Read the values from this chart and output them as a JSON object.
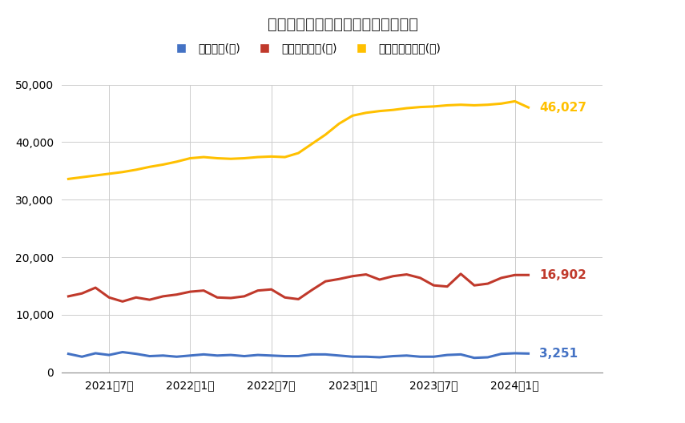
{
  "title": "首都圏　中古マンション件数の推移",
  "legend_labels": [
    "成約件数(件)",
    "新規登録件数(件)",
    "販売中の物件数(件)"
  ],
  "colors": {
    "blue": "#4472C4",
    "red": "#C0392B",
    "yellow": "#FFC000"
  },
  "x_tick_labels": [
    "2021年7月",
    "2022年1月",
    "2022年7月",
    "2023年1月",
    "2023年7月",
    "2024年1月"
  ],
  "ylim": [
    0,
    50000
  ],
  "yticks": [
    0,
    10000,
    20000,
    30000,
    40000,
    50000
  ],
  "end_labels": {
    "blue": "3,251",
    "red": "16,902",
    "yellow": "46,027"
  },
  "blue": [
    3200,
    2700,
    3300,
    3000,
    3500,
    3200,
    2800,
    2900,
    2700,
    2900,
    3100,
    2900,
    3000,
    2800,
    3000,
    2900,
    2800,
    2800,
    3100,
    3100,
    2900,
    2700,
    2700,
    2600,
    2800,
    2900,
    2700,
    2700,
    3000,
    3100,
    2500,
    2600,
    3200,
    3300,
    3251
  ],
  "red": [
    13200,
    13700,
    14700,
    13000,
    12300,
    13000,
    12600,
    13200,
    13500,
    14000,
    14200,
    13000,
    12900,
    13200,
    14200,
    14400,
    13000,
    12700,
    14300,
    15800,
    16200,
    16700,
    17000,
    16100,
    16700,
    17000,
    16400,
    15100,
    14900,
    17100,
    15100,
    15400,
    16400,
    16900,
    16902
  ],
  "yellow": [
    33600,
    33900,
    34200,
    34500,
    34800,
    35200,
    35700,
    36100,
    36600,
    37200,
    37400,
    37200,
    37100,
    37200,
    37400,
    37500,
    37400,
    38100,
    39700,
    41300,
    43200,
    44600,
    45100,
    45400,
    45600,
    45900,
    46100,
    46200,
    46400,
    46500,
    46400,
    46500,
    46700,
    47100,
    46027
  ],
  "x_tick_positions": [
    3,
    9,
    15,
    21,
    27,
    33
  ],
  "background_color": "#ffffff"
}
